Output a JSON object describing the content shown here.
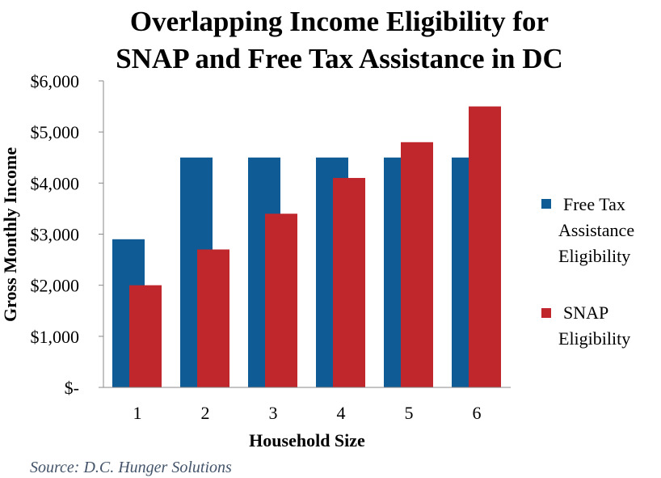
{
  "chart_data": {
    "type": "bar",
    "title_lines": [
      "Overlapping Income Eligibility for",
      "SNAP and Free Tax Assistance in DC"
    ],
    "xlabel": "Household Size",
    "ylabel": "Gross Monthly Income",
    "categories": [
      "1",
      "2",
      "3",
      "4",
      "5",
      "6"
    ],
    "series": [
      {
        "name_lines": [
          "Free Tax",
          "Assistance",
          "Eligibility"
        ],
        "color": "#0f5b96",
        "values": [
          2900,
          4500,
          4500,
          4500,
          4500,
          4500
        ]
      },
      {
        "name_lines": [
          "SNAP",
          "Eligibility"
        ],
        "color": "#c0272d",
        "values": [
          2000,
          2700,
          3400,
          4100,
          4800,
          5500
        ]
      }
    ],
    "ylim": [
      0,
      6000
    ],
    "yticks": [
      0,
      1000,
      2000,
      3000,
      4000,
      5000,
      6000
    ],
    "ytick_labels": [
      "$-",
      "$1,000",
      "$2,000",
      "$3,000",
      "$4,000",
      "$5,000",
      "$6,000"
    ],
    "grid": false,
    "legend_position": "right",
    "source": "Source: D.C. Hunger Solutions"
  }
}
